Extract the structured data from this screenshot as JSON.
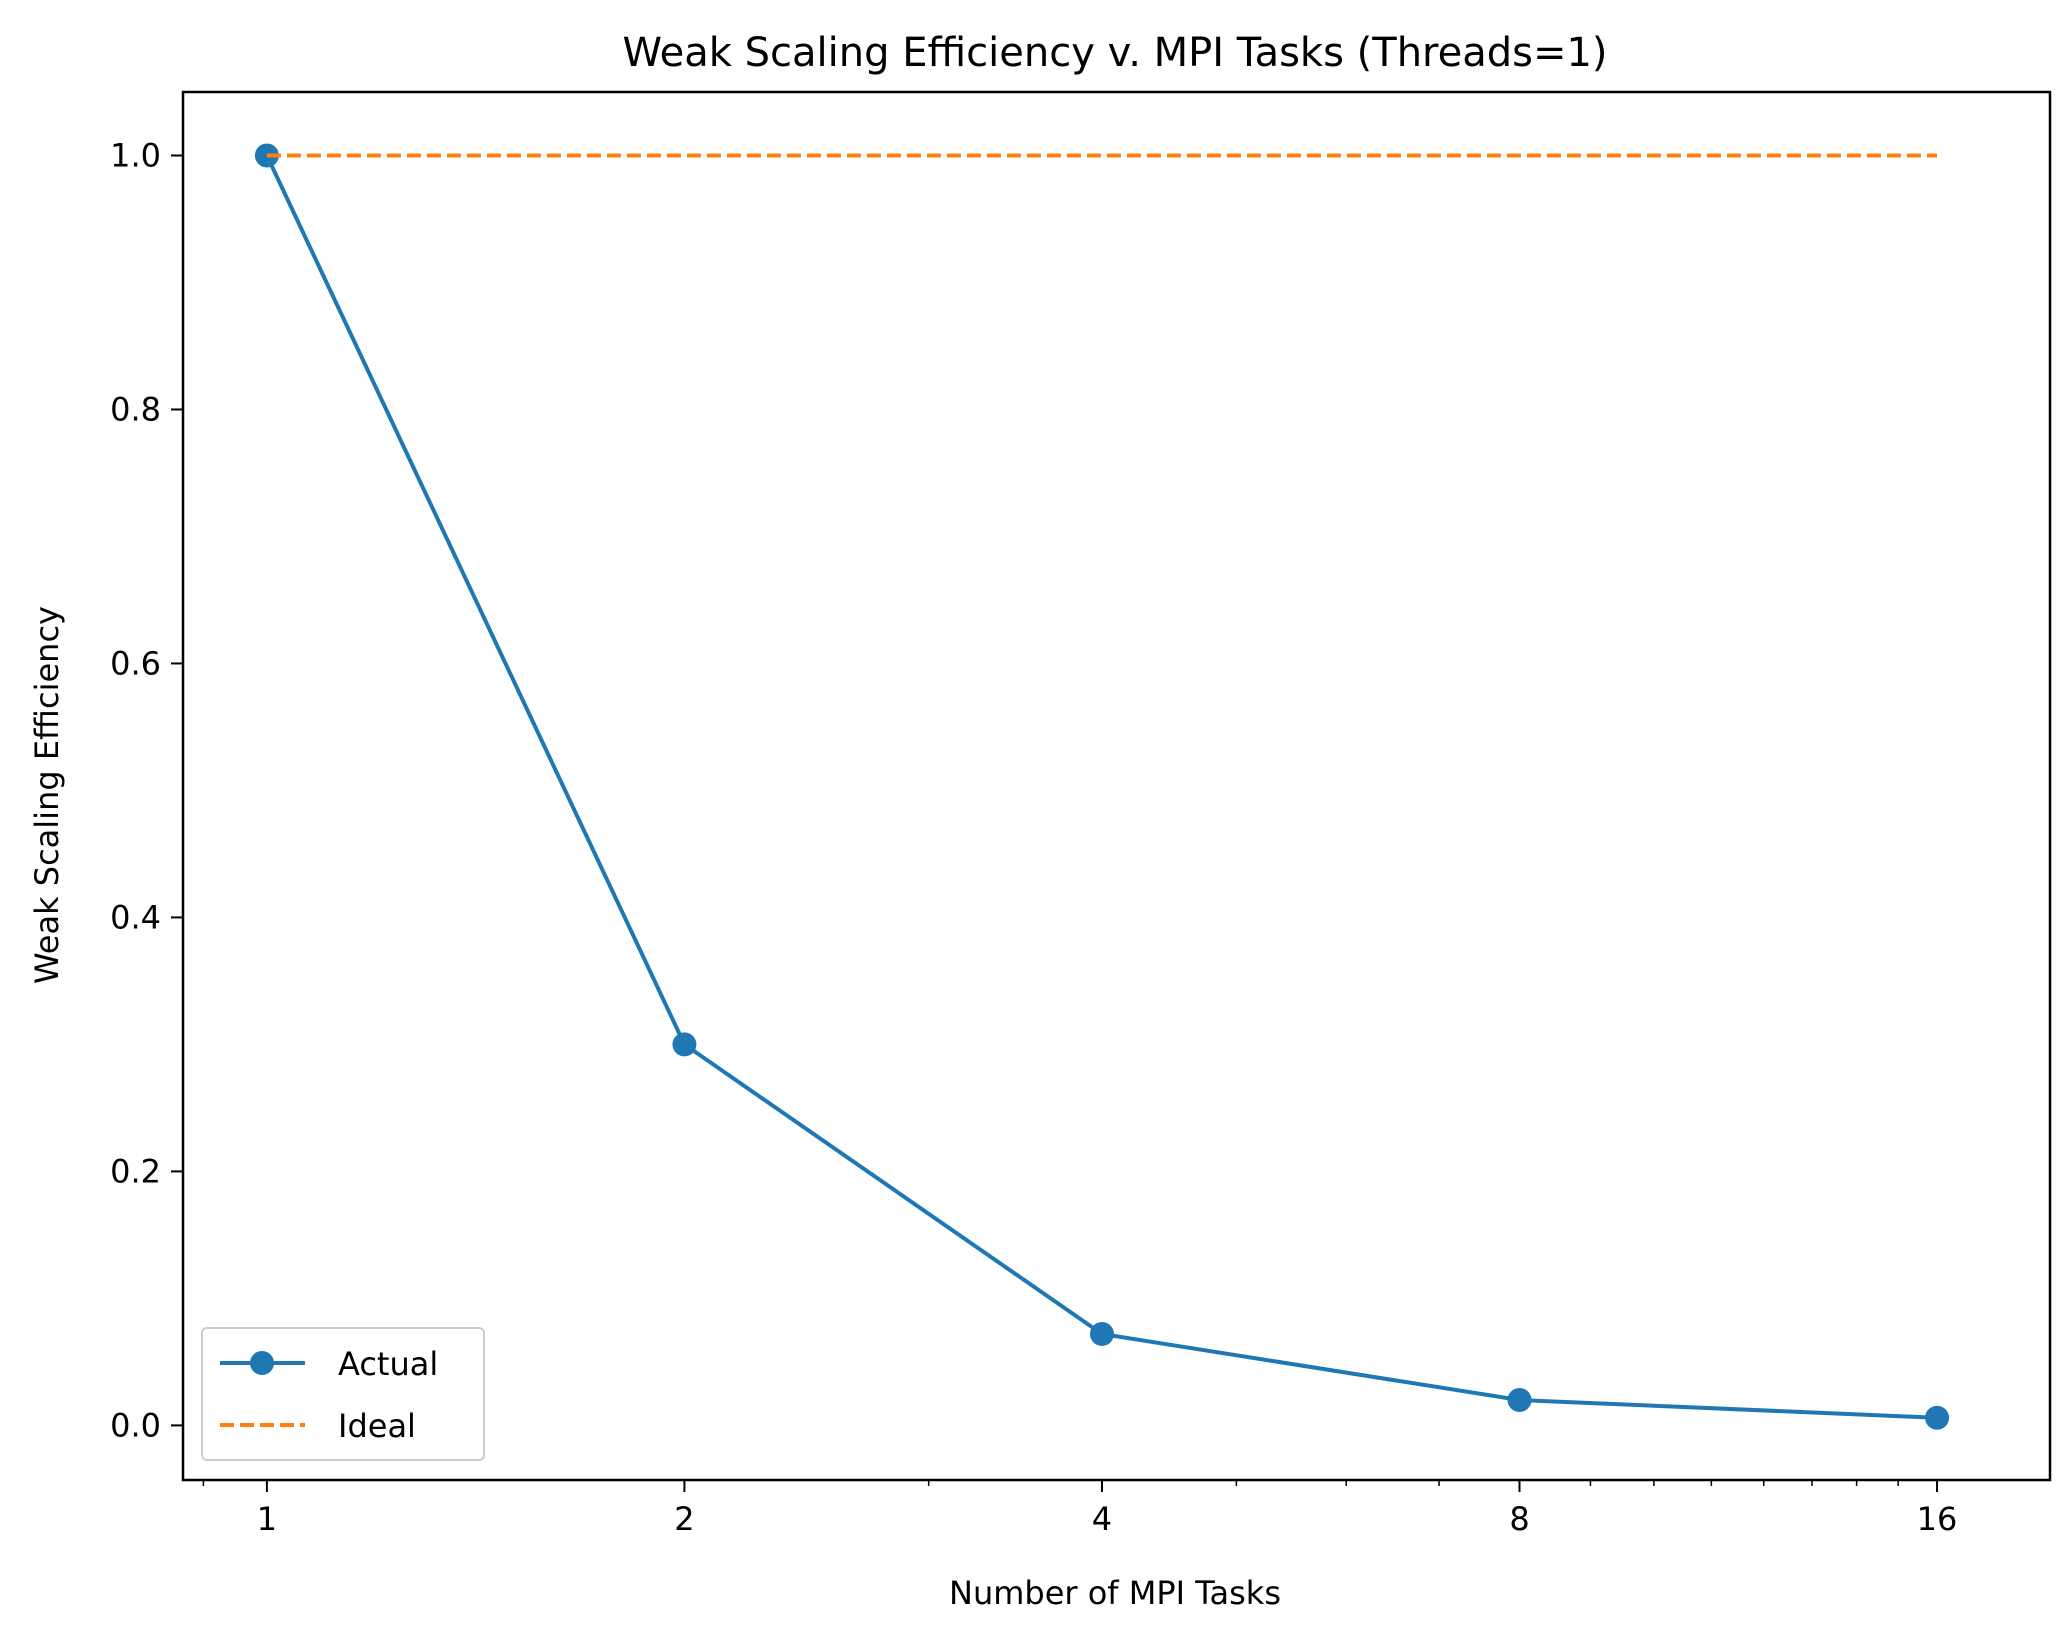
{
  "chart_data": {
    "type": "line",
    "title": "Weak Scaling Efficiency v. MPI Tasks (Threads=1)",
    "xlabel": "Number of MPI Tasks",
    "ylabel": "Weak Scaling Efficiency",
    "x_scale": "log2",
    "x": [
      1,
      2,
      4,
      8,
      16
    ],
    "xlim": [
      0.87,
      19.3
    ],
    "ylim": [
      -0.043,
      1.05
    ],
    "x_ticks": [
      {
        "value": 1,
        "label": "1"
      },
      {
        "value": 2,
        "label": "2"
      },
      {
        "value": 4,
        "label": "4"
      },
      {
        "value": 8,
        "label": "8"
      },
      {
        "value": 16,
        "label": "16"
      }
    ],
    "x_minor_ticks": [
      0.9,
      3,
      5,
      6,
      7,
      9,
      10,
      11,
      12,
      13,
      14,
      15
    ],
    "y_ticks": [
      {
        "value": 0.0,
        "label": "0.0"
      },
      {
        "value": 0.2,
        "label": "0.2"
      },
      {
        "value": 0.4,
        "label": "0.4"
      },
      {
        "value": 0.6,
        "label": "0.6"
      },
      {
        "value": 0.8,
        "label": "0.8"
      },
      {
        "value": 1.0,
        "label": "1.0"
      }
    ],
    "series": [
      {
        "name": "Actual",
        "values": [
          1.0,
          0.3,
          0.072,
          0.02,
          0.006
        ],
        "color": "#1f77b4",
        "style": "solid",
        "marker": "circle"
      },
      {
        "name": "Ideal",
        "values": [
          1.0,
          1.0,
          1.0,
          1.0,
          1.0
        ],
        "color": "#ff7f0e",
        "style": "dashed",
        "marker": "none"
      }
    ],
    "legend_position": "lower-left",
    "grid": false
  }
}
